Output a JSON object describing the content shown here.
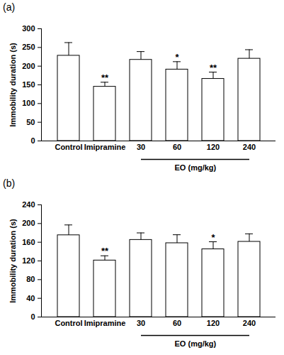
{
  "chart_data": [
    {
      "type": "bar",
      "title": "(a)",
      "y_label": "Immobility duration (s)",
      "categories": [
        "Control",
        "Imipramine",
        "30",
        "60",
        "120",
        "240"
      ],
      "values": [
        228,
        145,
        217,
        191,
        166,
        220
      ],
      "errors": [
        35,
        12,
        22,
        21,
        18,
        24
      ],
      "significance": [
        null,
        "**",
        null,
        "*",
        "**",
        null
      ],
      "group_label": "EO (mg/kg)",
      "group_range": [
        "30",
        "240"
      ],
      "color": "#ffffff",
      "ylim": [
        0,
        300
      ],
      "yticks": [
        0,
        50,
        100,
        150,
        200,
        250,
        300
      ],
      "grid": false
    },
    {
      "type": "bar",
      "title": "(b)",
      "y_label": "Immobility duration (s)",
      "categories": [
        "Control",
        "Imipramine",
        "30",
        "60",
        "120",
        "240"
      ],
      "values": [
        175,
        121,
        165,
        158,
        145,
        161
      ],
      "errors": [
        22,
        10,
        15,
        18,
        16,
        17
      ],
      "significance": [
        null,
        "**",
        null,
        null,
        "*",
        null
      ],
      "group_label": "EO (mg/kg)",
      "group_range": [
        "30",
        "240"
      ],
      "color": "#ffffff",
      "ylim": [
        0,
        240
      ],
      "yticks": [
        0,
        40,
        80,
        120,
        160,
        200,
        240
      ],
      "grid": false
    }
  ]
}
